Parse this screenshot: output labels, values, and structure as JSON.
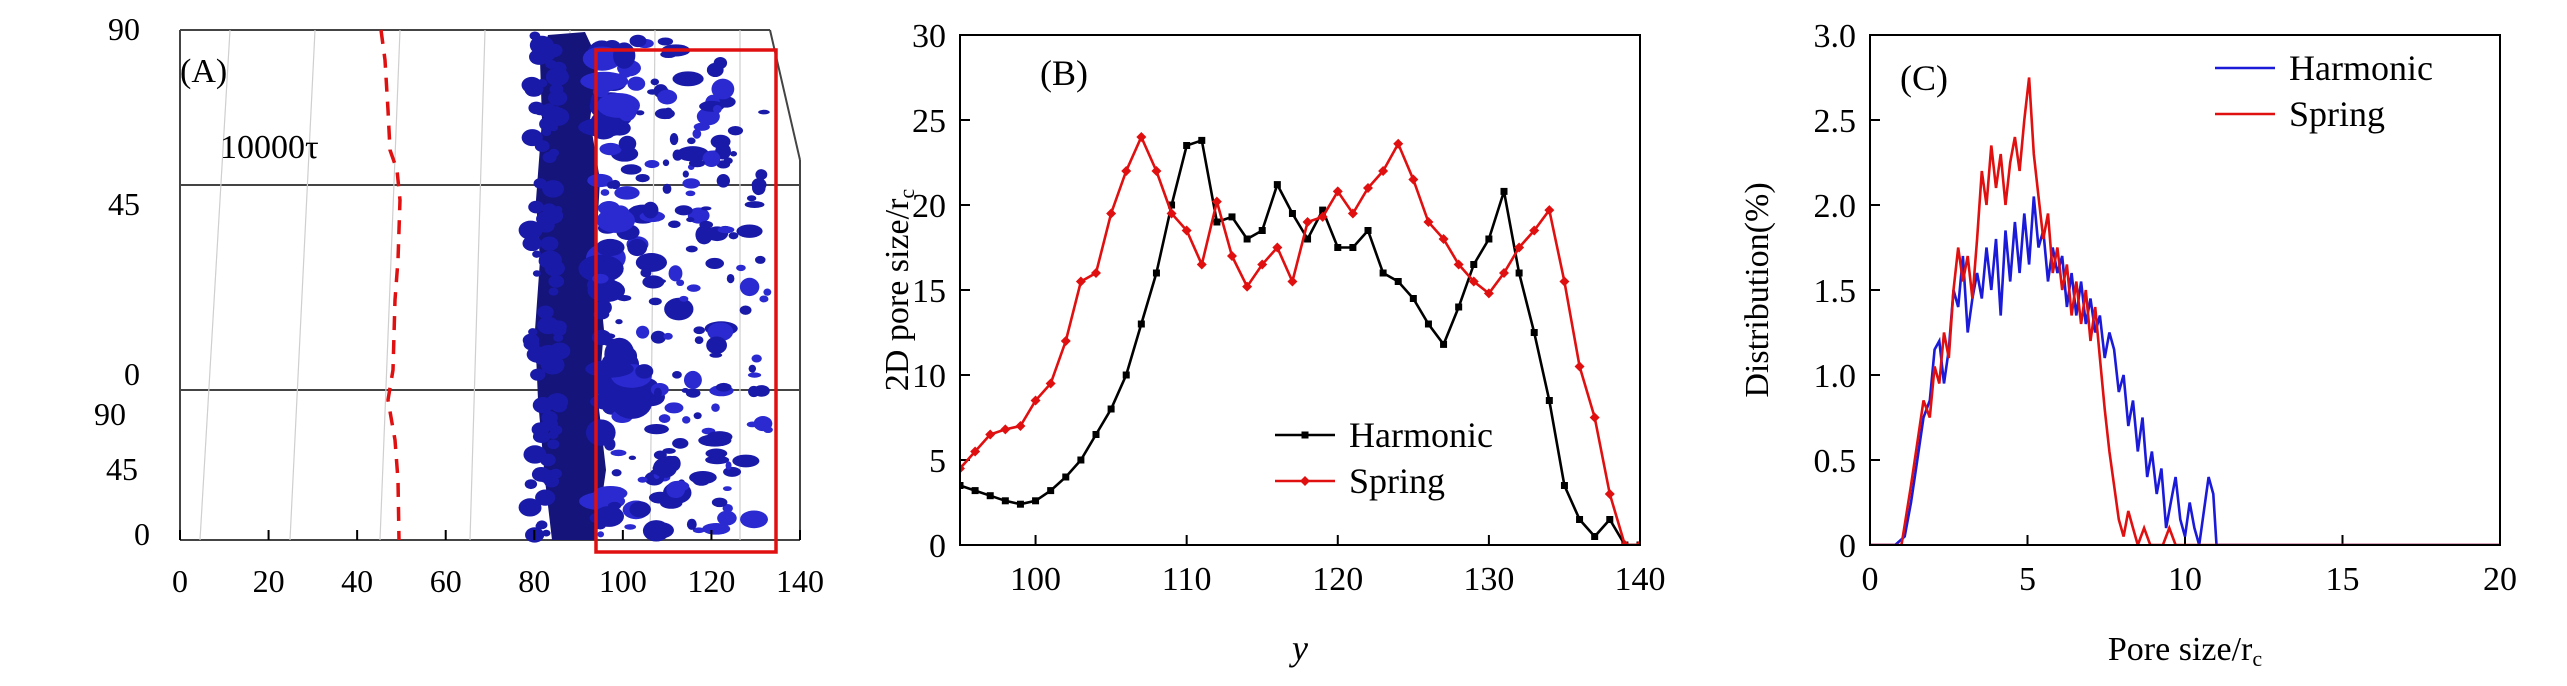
{
  "chart_data": [
    {
      "type": "3d-isosurface",
      "panel_label": "(A)",
      "annotation": "10000τ",
      "x_ticks": [
        "0",
        "20",
        "40",
        "60",
        "80",
        "100",
        "120",
        "140"
      ],
      "z_ticks": [
        "0",
        "45",
        "90"
      ],
      "y_ticks": [
        "0",
        "45",
        "90"
      ],
      "xlim": [
        0,
        140
      ],
      "interface_dashed_x": [
        47,
        48
      ],
      "highlight_box_x": [
        94,
        134
      ],
      "colors": {
        "surface": "#1a1aa8",
        "dashed": "#e01010",
        "box": "#e01010"
      }
    },
    {
      "type": "line",
      "panel_label": "(B)",
      "xlabel": "y",
      "ylabel": "2D pore size/r",
      "ylabel_sub": "c",
      "xlim": [
        95,
        140
      ],
      "ylim": [
        0,
        30
      ],
      "x_ticks": [
        "100",
        "110",
        "120",
        "130",
        "140"
      ],
      "y_ticks": [
        "0",
        "5",
        "10",
        "15",
        "20",
        "25",
        "30"
      ],
      "legend_position": "lower-right",
      "series": [
        {
          "name": "Harmonic",
          "color": "#000000",
          "marker": "square",
          "points": [
            [
              95,
              3.5
            ],
            [
              96,
              3.2
            ],
            [
              97,
              2.9
            ],
            [
              98,
              2.6
            ],
            [
              99,
              2.4
            ],
            [
              100,
              2.6
            ],
            [
              101,
              3.2
            ],
            [
              102,
              4
            ],
            [
              103,
              5
            ],
            [
              104,
              6.5
            ],
            [
              105,
              8
            ],
            [
              106,
              10
            ],
            [
              107,
              13
            ],
            [
              108,
              16
            ],
            [
              109,
              20
            ],
            [
              110,
              23.5
            ],
            [
              111,
              23.8
            ],
            [
              112,
              19
            ],
            [
              113,
              19.3
            ],
            [
              114,
              18
            ],
            [
              115,
              18.5
            ],
            [
              116,
              21.2
            ],
            [
              117,
              19.5
            ],
            [
              118,
              18
            ],
            [
              119,
              19.7
            ],
            [
              120,
              17.5
            ],
            [
              121,
              17.5
            ],
            [
              122,
              18.5
            ],
            [
              123,
              16
            ],
            [
              124,
              15.5
            ],
            [
              125,
              14.5
            ],
            [
              126,
              13
            ],
            [
              127,
              11.8
            ],
            [
              128,
              14
            ],
            [
              129,
              16.5
            ],
            [
              130,
              18
            ],
            [
              131,
              20.8
            ],
            [
              132,
              16
            ],
            [
              133,
              12.5
            ],
            [
              134,
              8.5
            ],
            [
              135,
              3.5
            ],
            [
              136,
              1.5
            ],
            [
              137,
              0.5
            ],
            [
              138,
              1.5
            ],
            [
              139,
              0
            ],
            [
              140,
              0
            ]
          ]
        },
        {
          "name": "Spring",
          "color": "#e01010",
          "marker": "diamond",
          "points": [
            [
              95,
              4.5
            ],
            [
              96,
              5.5
            ],
            [
              97,
              6.5
            ],
            [
              98,
              6.8
            ],
            [
              99,
              7
            ],
            [
              100,
              8.5
            ],
            [
              101,
              9.5
            ],
            [
              102,
              12
            ],
            [
              103,
              15.5
            ],
            [
              104,
              16
            ],
            [
              105,
              19.5
            ],
            [
              106,
              22
            ],
            [
              107,
              24
            ],
            [
              108,
              22
            ],
            [
              109,
              19.5
            ],
            [
              110,
              18.5
            ],
            [
              111,
              16.5
            ],
            [
              112,
              20.2
            ],
            [
              113,
              17
            ],
            [
              114,
              15.2
            ],
            [
              115,
              16.5
            ],
            [
              116,
              17.5
            ],
            [
              117,
              15.5
            ],
            [
              118,
              19
            ],
            [
              119,
              19.3
            ],
            [
              120,
              20.8
            ],
            [
              121,
              19.5
            ],
            [
              122,
              21
            ],
            [
              123,
              22
            ],
            [
              124,
              23.6
            ],
            [
              125,
              21.5
            ],
            [
              126,
              19
            ],
            [
              127,
              18
            ],
            [
              128,
              16.5
            ],
            [
              129,
              15.5
            ],
            [
              130,
              14.8
            ],
            [
              131,
              16
            ],
            [
              132,
              17.5
            ],
            [
              133,
              18.5
            ],
            [
              134,
              19.7
            ],
            [
              135,
              15.5
            ],
            [
              136,
              10.5
            ],
            [
              137,
              7.5
            ],
            [
              138,
              3
            ],
            [
              139,
              0
            ],
            [
              140,
              0
            ]
          ]
        }
      ]
    },
    {
      "type": "line",
      "panel_label": "(C)",
      "xlabel": "Pore size/r",
      "xlabel_sub": "c",
      "ylabel": "Distribution(%)",
      "xlim": [
        0,
        20
      ],
      "ylim": [
        0,
        3.0
      ],
      "x_ticks": [
        "0",
        "5",
        "10",
        "15",
        "20"
      ],
      "y_ticks": [
        "0",
        "0.5",
        "1.0",
        "1.5",
        "2.0",
        "2.5",
        "3.0"
      ],
      "legend_position": "top-right",
      "series": [
        {
          "name": "Harmonic",
          "color": "#1a1ad8",
          "points": [
            [
              0,
              0
            ],
            [
              0.8,
              0
            ],
            [
              1.1,
              0.05
            ],
            [
              1.3,
              0.25
            ],
            [
              1.5,
              0.5
            ],
            [
              1.7,
              0.75
            ],
            [
              1.9,
              0.85
            ],
            [
              2.05,
              1.15
            ],
            [
              2.2,
              1.2
            ],
            [
              2.35,
              0.95
            ],
            [
              2.5,
              1.15
            ],
            [
              2.65,
              1.5
            ],
            [
              2.8,
              1.4
            ],
            [
              2.95,
              1.7
            ],
            [
              3.1,
              1.25
            ],
            [
              3.25,
              1.45
            ],
            [
              3.4,
              1.6
            ],
            [
              3.55,
              1.45
            ],
            [
              3.7,
              1.75
            ],
            [
              3.85,
              1.5
            ],
            [
              4.0,
              1.8
            ],
            [
              4.15,
              1.35
            ],
            [
              4.3,
              1.85
            ],
            [
              4.45,
              1.55
            ],
            [
              4.6,
              1.9
            ],
            [
              4.75,
              1.6
            ],
            [
              4.9,
              1.95
            ],
            [
              5.05,
              1.65
            ],
            [
              5.2,
              2.05
            ],
            [
              5.35,
              1.75
            ],
            [
              5.5,
              1.85
            ],
            [
              5.65,
              1.55
            ],
            [
              5.8,
              1.75
            ],
            [
              5.95,
              1.6
            ],
            [
              6.1,
              1.7
            ],
            [
              6.25,
              1.4
            ],
            [
              6.4,
              1.6
            ],
            [
              6.55,
              1.35
            ],
            [
              6.7,
              1.55
            ],
            [
              6.85,
              1.3
            ],
            [
              7.0,
              1.45
            ],
            [
              7.15,
              1.25
            ],
            [
              7.3,
              1.35
            ],
            [
              7.45,
              1.1
            ],
            [
              7.6,
              1.25
            ],
            [
              7.75,
              1.15
            ],
            [
              7.9,
              0.9
            ],
            [
              8.05,
              1.0
            ],
            [
              8.2,
              0.7
            ],
            [
              8.35,
              0.85
            ],
            [
              8.5,
              0.55
            ],
            [
              8.65,
              0.75
            ],
            [
              8.8,
              0.4
            ],
            [
              8.95,
              0.55
            ],
            [
              9.1,
              0.3
            ],
            [
              9.25,
              0.45
            ],
            [
              9.4,
              0.1
            ],
            [
              9.55,
              0.25
            ],
            [
              9.7,
              0.4
            ],
            [
              9.85,
              0.15
            ],
            [
              10.0,
              0.05
            ],
            [
              10.15,
              0.25
            ],
            [
              10.3,
              0.1
            ],
            [
              10.45,
              0
            ],
            [
              10.6,
              0.2
            ],
            [
              10.75,
              0.4
            ],
            [
              10.9,
              0.3
            ],
            [
              11.0,
              0
            ],
            [
              12,
              0
            ],
            [
              14,
              0
            ],
            [
              16,
              0
            ],
            [
              18,
              0
            ],
            [
              20,
              0
            ]
          ]
        },
        {
          "name": "Spring",
          "color": "#e01010",
          "points": [
            [
              0,
              0
            ],
            [
              1.0,
              0
            ],
            [
              1.3,
              0.35
            ],
            [
              1.5,
              0.6
            ],
            [
              1.7,
              0.85
            ],
            [
              1.9,
              0.75
            ],
            [
              2.05,
              1.05
            ],
            [
              2.2,
              0.95
            ],
            [
              2.35,
              1.25
            ],
            [
              2.5,
              1.1
            ],
            [
              2.65,
              1.5
            ],
            [
              2.8,
              1.75
            ],
            [
              2.95,
              1.55
            ],
            [
              3.1,
              1.7
            ],
            [
              3.25,
              1.45
            ],
            [
              3.4,
              1.8
            ],
            [
              3.55,
              2.2
            ],
            [
              3.7,
              2.0
            ],
            [
              3.85,
              2.35
            ],
            [
              4.0,
              2.1
            ],
            [
              4.15,
              2.3
            ],
            [
              4.3,
              2.0
            ],
            [
              4.45,
              2.25
            ],
            [
              4.6,
              2.4
            ],
            [
              4.75,
              2.2
            ],
            [
              4.9,
              2.5
            ],
            [
              5.05,
              2.75
            ],
            [
              5.2,
              2.3
            ],
            [
              5.35,
              2.05
            ],
            [
              5.5,
              1.8
            ],
            [
              5.65,
              1.95
            ],
            [
              5.8,
              1.6
            ],
            [
              5.95,
              1.75
            ],
            [
              6.1,
              1.5
            ],
            [
              6.25,
              1.65
            ],
            [
              6.4,
              1.35
            ],
            [
              6.55,
              1.55
            ],
            [
              6.7,
              1.3
            ],
            [
              6.85,
              1.5
            ],
            [
              7.0,
              1.2
            ],
            [
              7.15,
              1.4
            ],
            [
              7.3,
              1.1
            ],
            [
              7.45,
              0.8
            ],
            [
              7.6,
              0.55
            ],
            [
              7.75,
              0.35
            ],
            [
              7.9,
              0.15
            ],
            [
              8.05,
              0.05
            ],
            [
              8.2,
              0.2
            ],
            [
              8.35,
              0.1
            ],
            [
              8.5,
              0
            ],
            [
              8.7,
              0.1
            ],
            [
              8.9,
              0
            ],
            [
              9.3,
              0
            ],
            [
              9.5,
              0.1
            ],
            [
              9.7,
              0
            ],
            [
              12,
              0
            ],
            [
              14,
              0
            ],
            [
              16,
              0
            ],
            [
              18,
              0
            ],
            [
              20,
              0
            ]
          ]
        }
      ]
    }
  ]
}
